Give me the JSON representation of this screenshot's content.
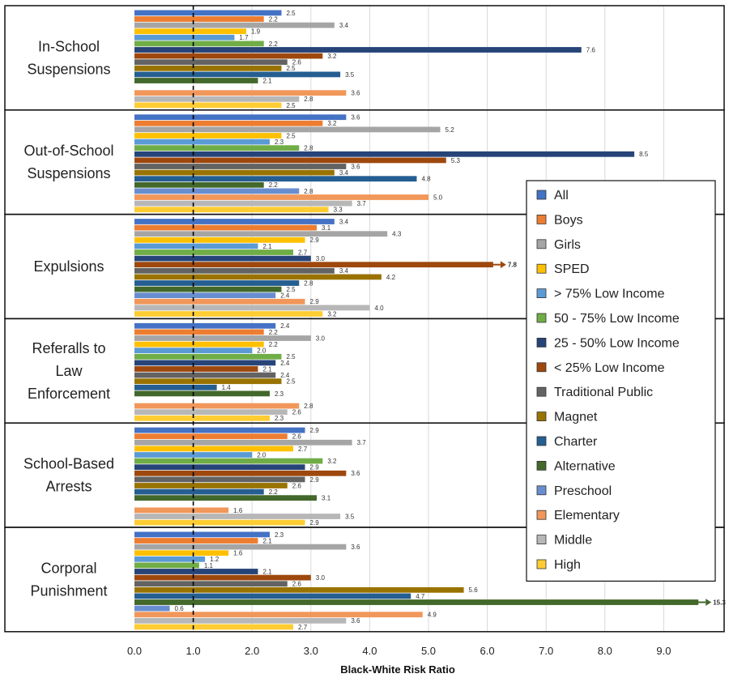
{
  "chart_data": {
    "type": "bar",
    "orientation": "horizontal",
    "xlabel": "Black-White Risk Ratio",
    "xlim": [
      0,
      9.7
    ],
    "xticks": [
      "0.0",
      "1.0",
      "2.0",
      "3.0",
      "4.0",
      "5.0",
      "6.0",
      "7.0",
      "8.0",
      "9.0"
    ],
    "xtick_values": [
      0,
      1,
      2,
      3,
      4,
      5,
      6,
      7,
      8,
      9
    ],
    "reference_line": 1.0,
    "grid": true,
    "legend_position": "right",
    "series": [
      {
        "name": "All",
        "color": "#4472C4"
      },
      {
        "name": "Boys",
        "color": "#ED7D31"
      },
      {
        "name": "Girls",
        "color": "#A5A5A5"
      },
      {
        "name": "SPED",
        "color": "#FFC000"
      },
      {
        "name": "> 75% Low Income",
        "color": "#5B9BD5"
      },
      {
        "name": "50 - 75% Low Income",
        "color": "#70AD47"
      },
      {
        "name": "25 - 50% Low Income",
        "color": "#264478"
      },
      {
        "name": "< 25% Low Income",
        "color": "#9E480E"
      },
      {
        "name": "Traditional Public",
        "color": "#636363"
      },
      {
        "name": "Magnet",
        "color": "#997300"
      },
      {
        "name": "Charter",
        "color": "#255E91"
      },
      {
        "name": "Alternative",
        "color": "#43682B"
      },
      {
        "name": "Preschool",
        "color": "#698ED0"
      },
      {
        "name": "Elementary",
        "color": "#F1975A"
      },
      {
        "name": "Middle",
        "color": "#B7B7B7"
      },
      {
        "name": "High",
        "color": "#FFCD33"
      }
    ],
    "categories": [
      {
        "label": [
          "In-School",
          "Suspensions"
        ],
        "values": [
          2.5,
          2.2,
          3.4,
          1.9,
          1.7,
          2.2,
          7.6,
          3.2,
          2.6,
          2.5,
          3.5,
          2.1,
          null,
          3.6,
          2.8,
          2.5
        ],
        "labels": [
          "2.5",
          "2.2",
          "3.4",
          "1.9",
          "1.7",
          "2.2",
          "7.6",
          "3.2",
          "2.6",
          "2.5",
          "3.5",
          "2.1",
          "",
          "3.6",
          "2.8",
          "2.5"
        ]
      },
      {
        "label": [
          "Out-of-School",
          "Suspensions"
        ],
        "values": [
          3.6,
          3.2,
          5.2,
          2.5,
          2.3,
          2.8,
          8.5,
          5.3,
          3.6,
          3.4,
          4.8,
          2.2,
          2.8,
          5.0,
          3.7,
          3.3
        ],
        "labels": [
          "3.6",
          "3.2",
          "5.2",
          "2.5",
          "2.3",
          "2.8",
          "8.5",
          "5.3",
          "3.6",
          "3.4",
          "4.8",
          "2.2",
          "2.8",
          "5.0",
          "3.7",
          "3.3"
        ]
      },
      {
        "label": [
          "Expulsions"
        ],
        "values": [
          3.4,
          3.1,
          4.3,
          2.9,
          2.1,
          2.7,
          3.0,
          7.8,
          3.4,
          4.2,
          2.8,
          2.5,
          2.4,
          2.9,
          4.0,
          3.2
        ],
        "labels": [
          "3.4",
          "3.1",
          "4.3",
          "2.9",
          "2.1",
          "2.7",
          "3.0",
          "7.8",
          "3.4",
          "4.2",
          "2.8",
          "2.5",
          "2.4",
          "2.9",
          "4.0",
          "3.2"
        ]
      },
      {
        "label": [
          "Referalls to",
          "Law",
          "Enforcement"
        ],
        "values": [
          2.4,
          2.2,
          3.0,
          2.2,
          2.0,
          2.5,
          2.4,
          2.1,
          2.4,
          2.5,
          1.4,
          2.3,
          null,
          2.8,
          2.6,
          2.3
        ],
        "labels": [
          "2.4",
          "2.2",
          "3.0",
          "2.2",
          "2.0",
          "2.5",
          "2.4",
          "2.1",
          "2.4",
          "2.5",
          "1.4",
          "2.3",
          "",
          "2.8",
          "2.6",
          "2.3"
        ]
      },
      {
        "label": [
          "School-Based",
          "Arrests"
        ],
        "values": [
          2.9,
          2.6,
          3.7,
          2.7,
          2.0,
          3.2,
          2.9,
          3.6,
          2.9,
          2.6,
          2.2,
          3.1,
          null,
          1.6,
          3.5,
          2.9
        ],
        "labels": [
          "2.9",
          "2.6",
          "3.7",
          "2.7",
          "2.0",
          "3.2",
          "2.9",
          "3.6",
          "2.9",
          "2.6",
          "2.2",
          "3.1",
          "",
          "1.6",
          "3.5",
          "2.9"
        ]
      },
      {
        "label": [
          "Corporal",
          "Punishment"
        ],
        "values": [
          2.3,
          2.1,
          3.6,
          1.6,
          1.2,
          1.1,
          2.1,
          3.0,
          2.6,
          5.6,
          4.7,
          15.3,
          0.6,
          4.9,
          3.6,
          2.7
        ],
        "labels": [
          "2.3",
          "2.1",
          "3.6",
          "1.6",
          "1.2",
          "1.1",
          "2.1",
          "3.0",
          "2.6",
          "5.6",
          "4.7",
          "15.3",
          "0.6",
          "4.9",
          "3.6",
          "2.7"
        ]
      }
    ]
  }
}
